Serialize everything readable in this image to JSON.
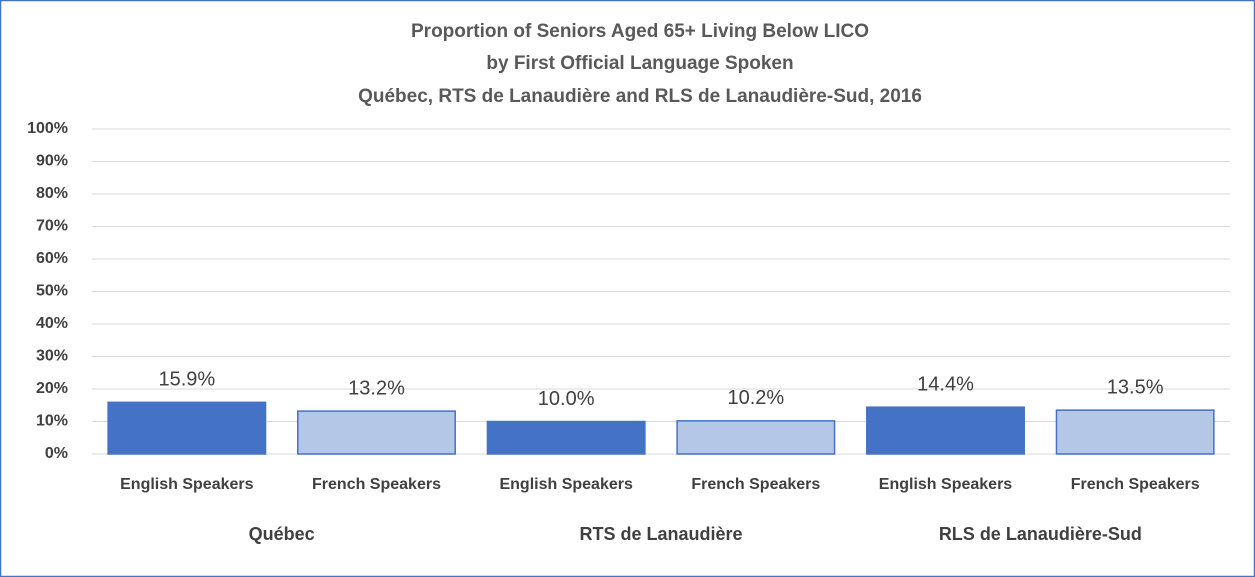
{
  "chart_data": {
    "type": "bar",
    "title": [
      "Proportion of Seniors Aged 65+ Living Below LICO",
      "by First Official Language Spoken",
      "Québec, RTS de Lanaudière and RLS de Lanaudière-Sud, 2016"
    ],
    "categories": [
      "English Speakers",
      "French Speakers",
      "English Speakers",
      "French Speakers",
      "English Speakers",
      "French Speakers"
    ],
    "groups": [
      "Québec",
      "RTS de Lanaudière",
      "RLS de Lanaudière-Sud"
    ],
    "values": [
      15.9,
      13.2,
      10.0,
      10.2,
      14.4,
      13.5
    ],
    "value_labels": [
      "15.9%",
      "13.2%",
      "10.0%",
      "10.2%",
      "14.4%",
      "13.5%"
    ],
    "colors": [
      "#4472c4",
      "#b4c7e7",
      "#4472c4",
      "#b4c7e7",
      "#4472c4",
      "#b4c7e7"
    ],
    "ylim": [
      0,
      100
    ],
    "yticks": [
      {
        "value": 0,
        "label": "0%"
      },
      {
        "value": 10,
        "label": "10%"
      },
      {
        "value": 20,
        "label": "20%"
      },
      {
        "value": 30,
        "label": "30%"
      },
      {
        "value": 40,
        "label": "40%"
      },
      {
        "value": 50,
        "label": "50%"
      },
      {
        "value": 60,
        "label": "60%"
      },
      {
        "value": 70,
        "label": "70%"
      },
      {
        "value": 80,
        "label": "80%"
      },
      {
        "value": 90,
        "label": "90%"
      },
      {
        "value": 100,
        "label": "100%"
      }
    ],
    "grid": true
  }
}
